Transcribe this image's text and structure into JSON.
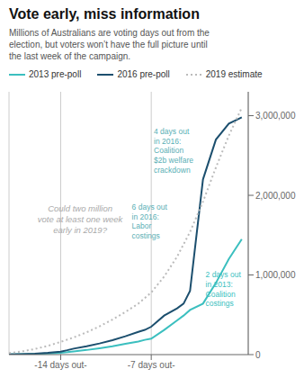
{
  "chart_data": {
    "type": "line",
    "title": "Vote early, miss information",
    "subtitle": "Millions of Australians are voting days out from the\nelection, but voters won’t have the full picture until\nthe last week of the campaign.",
    "series": [
      {
        "name": "2013 pre-poll",
        "color": "#3bbfbf",
        "line_style": "solid",
        "x": [
          -18,
          -17,
          -16,
          -15,
          -14,
          -13.5,
          -13,
          -12,
          -11,
          -10,
          -9,
          -8,
          -7.5,
          -7,
          -6,
          -5,
          -4.5,
          -4,
          -3,
          -2,
          -1,
          0
        ],
        "values": [
          3000,
          5000,
          8000,
          14000,
          22000,
          30000,
          40000,
          58000,
          80000,
          105000,
          135000,
          165000,
          185000,
          200000,
          310000,
          430000,
          490000,
          560000,
          640000,
          900000,
          1200000,
          1450000
        ]
      },
      {
        "name": "2016 pre-poll",
        "color": "#1c4f6e",
        "line_style": "solid",
        "x": [
          -18,
          -17,
          -16,
          -15,
          -14,
          -13.5,
          -13,
          -12,
          -11,
          -10,
          -9,
          -8,
          -7.5,
          -7,
          -6,
          -5,
          -4.5,
          -4,
          -3,
          -2,
          -1,
          0
        ],
        "values": [
          4000,
          7000,
          12000,
          22000,
          38000,
          55000,
          75000,
          105000,
          140000,
          180000,
          230000,
          285000,
          310000,
          350000,
          490000,
          580000,
          640000,
          800000,
          2200000,
          2700000,
          2900000,
          2980000
        ]
      },
      {
        "name": "2019 estimate",
        "color": "#bbbbbb",
        "line_style": "dotted",
        "x": [
          -18,
          -17,
          -16,
          -15,
          -14,
          -13,
          -12,
          -11,
          -10,
          -9,
          -8,
          -7,
          -6,
          -5,
          -4,
          -3,
          -2,
          -1,
          0
        ],
        "values": [
          20000,
          40000,
          70000,
          110000,
          160000,
          215000,
          280000,
          355000,
          440000,
          535000,
          640000,
          780000,
          980000,
          1230000,
          1540000,
          1920000,
          2350000,
          2750000,
          3100000
        ]
      }
    ],
    "xlim": [
      -18,
      0.5
    ],
    "ylim": [
      0,
      3300000
    ],
    "xticks": [
      {
        "value": -14,
        "label": "-14 days out-"
      },
      {
        "value": -7,
        "label": "-7 days out-"
      }
    ],
    "yticks": [
      0,
      {
        "value": 1000000,
        "label": "1,000,000"
      },
      {
        "value": 2000000,
        "label": "2,000,000"
      },
      {
        "value": 3000000,
        "label": "3,000,000"
      }
    ],
    "grid": "x",
    "legend": "top",
    "annotations": [
      {
        "text": "Could two million\nvote at least one week\nearly in 2019?",
        "x": -12.5,
        "y": 1700000,
        "color": "#aaaaaa"
      },
      {
        "text": "4 days out\nin 2016:\nCoalition\n$2b welfare\ncrackdown",
        "x": -6.8,
        "y": 2850000,
        "color": "#5aafb5"
      },
      {
        "text": "6 days out\nin 2016:\nLabor\ncostings",
        "x": -8.5,
        "y": 1900000,
        "color": "#5aafb5"
      },
      {
        "text": "2 days out\nin 2013: \nCoalition\ncostings",
        "x": -2.8,
        "y": 1050000,
        "color": "#3bbfbf"
      }
    ]
  }
}
